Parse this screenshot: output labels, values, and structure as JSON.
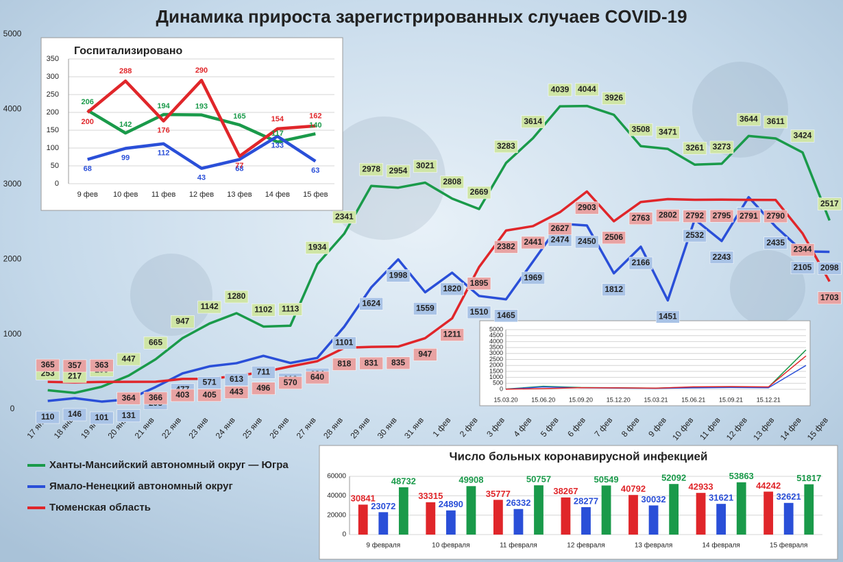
{
  "chart_data": [
    {
      "type": "line",
      "title": "Динамика прироста зарегистрированных случаев COVID-19",
      "categories": [
        "17 янв",
        "18 янв",
        "19 янв",
        "20 янв",
        "21 янв",
        "22 янв",
        "23 янв",
        "24 янв",
        "25 янв",
        "26 янв",
        "27 янв",
        "28 янв",
        "29 янв",
        "30 янв",
        "31 янв",
        "1 фев",
        "2 фев",
        "3 фев",
        "4 фев",
        "5 фев",
        "6 фев",
        "7 фев",
        "8 фев",
        "9 фев",
        "10 фев",
        "11 фев",
        "12 фев",
        "13 фев",
        "14 фев",
        "15 фев"
      ],
      "series": [
        {
          "name": "Ханты-Мансийский автономный округ — Югра",
          "color": "#1a9a4a",
          "values": [
            253,
            217,
            299,
            447,
            665,
            947,
            1142,
            1280,
            1102,
            1113,
            1934,
            2341,
            2978,
            2954,
            3021,
            2808,
            2669,
            3283,
            3614,
            4039,
            4044,
            3926,
            3508,
            3471,
            3261,
            3273,
            3644,
            3611,
            3424,
            2517
          ]
        },
        {
          "name": "Ямало-Ненецкий автономный округ",
          "color": "#2a4fd8",
          "values": [
            110,
            146,
            101,
            131,
            295,
            477,
            571,
            613,
            711,
            616,
            684,
            1101,
            1624,
            1998,
            1559,
            1820,
            1510,
            1465,
            1969,
            2474,
            2450,
            1812,
            2166,
            1451,
            2532,
            2243,
            2827,
            2435,
            2105,
            2098
          ]
        },
        {
          "name": "Тюменская область",
          "color": "#e0262a",
          "values": [
            365,
            357,
            363,
            364,
            366,
            403,
            405,
            443,
            496,
            570,
            640,
            818,
            831,
            835,
            947,
            1211,
            1895,
            2382,
            2441,
            2627,
            2903,
            2506,
            2763,
            2802,
            2792,
            2795,
            2791,
            2790,
            2344,
            1703
          ]
        }
      ],
      "ylim": [
        0,
        5000
      ],
      "yticks": [
        0,
        1000,
        2000,
        3000,
        4000,
        5000
      ],
      "grid": false
    },
    {
      "type": "line",
      "title": "Госпитализировано",
      "categories": [
        "9 фев",
        "10 фев",
        "11 фев",
        "12 фев",
        "13 фев",
        "14 фев",
        "15 фев"
      ],
      "series": [
        {
          "color": "#1a9a4a",
          "values": [
            206,
            142,
            194,
            193,
            165,
            117,
            140
          ]
        },
        {
          "color": "#2a4fd8",
          "values": [
            68,
            99,
            112,
            43,
            68,
            133,
            63
          ]
        },
        {
          "color": "#e0262a",
          "values": [
            200,
            288,
            176,
            290,
            77,
            154,
            162
          ]
        }
      ],
      "ylim": [
        0,
        350
      ],
      "yticks": [
        0,
        50,
        100,
        150,
        200,
        250,
        300,
        350
      ],
      "grid": true
    },
    {
      "type": "line",
      "categories": [
        "15.03.20",
        "15.06.20",
        "15.09.20",
        "15.12.20",
        "15.03.21",
        "15.06.21",
        "15.09.21",
        "15.12.21",
        null
      ],
      "series": [
        {
          "color": "#1a9a4a",
          "values": [
            20,
            250,
            150,
            120,
            100,
            180,
            200,
            180,
            3300
          ]
        },
        {
          "color": "#2a4fd8",
          "values": [
            10,
            200,
            120,
            100,
            80,
            120,
            150,
            130,
            2000
          ]
        },
        {
          "color": "#e0262a",
          "values": [
            10,
            60,
            140,
            120,
            90,
            210,
            230,
            200,
            2800
          ]
        }
      ],
      "ylim": [
        0,
        5000
      ],
      "yticks": [
        0,
        500,
        1000,
        1500,
        2000,
        2500,
        3000,
        3500,
        4000,
        4500,
        5000
      ],
      "grid": true
    },
    {
      "type": "bar",
      "title": "Число больных коронавирусной инфекцией",
      "categories": [
        "9 февраля",
        "10 февраля",
        "11 февраля",
        "12 февраля",
        "13 февраля",
        "14 февраля",
        "15 февраля"
      ],
      "series": [
        {
          "color": "#e0262a",
          "values": [
            30841,
            33315,
            35777,
            38267,
            40792,
            42933,
            44242
          ]
        },
        {
          "color": "#2a4fd8",
          "values": [
            23072,
            24890,
            26332,
            28277,
            30032,
            31621,
            32621
          ]
        },
        {
          "color": "#1a9a4a",
          "values": [
            48732,
            49908,
            50757,
            50549,
            52092,
            53863,
            51817
          ]
        }
      ],
      "ylim": [
        0,
        60000
      ],
      "yticks": [
        0,
        20000,
        40000,
        60000
      ],
      "grid": true
    }
  ]
}
